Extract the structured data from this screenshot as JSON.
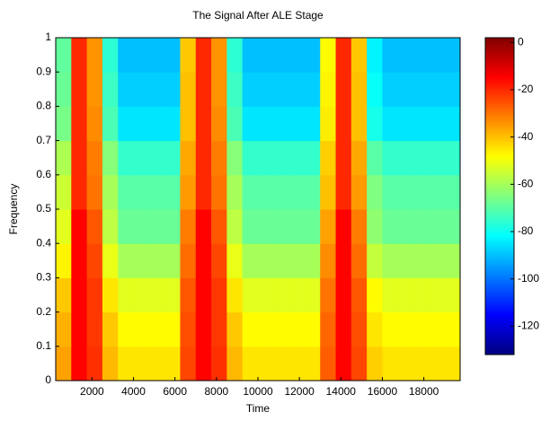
{
  "chart_data": {
    "type": "heatmap",
    "title": "The Signal After ALE Stage",
    "x_label": "Time",
    "y_label": "Frequency",
    "colormap": "jet",
    "x": [
      625,
      1375,
      2125,
      2875,
      3625,
      4375,
      5125,
      5875,
      6625,
      7375,
      8125,
      8875,
      9625,
      10375,
      11125,
      11875,
      12625,
      13375,
      14125,
      14875,
      15625,
      16375,
      17125,
      17875,
      18625,
      19375
    ],
    "y": [
      0.05,
      0.15,
      0.25,
      0.35,
      0.45,
      0.55,
      0.65,
      0.75,
      0.85,
      0.95
    ],
    "z": [
      [
        -36,
        -15,
        -21,
        -39,
        -45,
        -45,
        -45,
        -45,
        -24,
        -15,
        -21,
        -39,
        -45,
        -45,
        -45,
        -45,
        -45,
        -27,
        -15,
        -24,
        -42,
        -45,
        -45,
        -45,
        -45,
        -45
      ],
      [
        -38,
        -15,
        -22,
        -41,
        -48,
        -48,
        -48,
        -48,
        -25,
        -15,
        -22,
        -41,
        -48,
        -48,
        -48,
        -48,
        -48,
        -28,
        -15,
        -25,
        -45,
        -48,
        -48,
        -48,
        -48,
        -48
      ],
      [
        -41,
        -15,
        -22,
        -45,
        -52,
        -52,
        -52,
        -52,
        -26,
        -15,
        -22,
        -45,
        -52,
        -52,
        -52,
        -52,
        -52,
        -30,
        -15,
        -26,
        -48,
        -52,
        -52,
        -52,
        -52,
        -52
      ],
      [
        -47,
        -15,
        -24,
        -51,
        -60,
        -60,
        -60,
        -60,
        -29,
        -15,
        -24,
        -51,
        -60,
        -60,
        -60,
        -60,
        -60,
        -33,
        -15,
        -29,
        -56,
        -60,
        -60,
        -60,
        -60,
        -60
      ],
      [
        -52,
        -15,
        -26,
        -57,
        -68,
        -68,
        -68,
        -68,
        -31,
        -15,
        -26,
        -57,
        -68,
        -68,
        -68,
        -68,
        -68,
        -36,
        -15,
        -31,
        -63,
        -68,
        -68,
        -68,
        -68,
        -68
      ],
      [
        -55,
        -20,
        -30,
        -60,
        -70,
        -70,
        -70,
        -70,
        -35,
        -20,
        -30,
        -60,
        -70,
        -70,
        -70,
        -70,
        -70,
        -40,
        -20,
        -35,
        -65,
        -70,
        -70,
        -70,
        -70,
        -70
      ],
      [
        -59,
        -20,
        -31,
        -64,
        -75,
        -75,
        -75,
        -75,
        -37,
        -20,
        -31,
        -64,
        -75,
        -75,
        -75,
        -75,
        -75,
        -42,
        -20,
        -37,
        -70,
        -75,
        -75,
        -75,
        -75,
        -75
      ],
      [
        -66,
        -20,
        -33,
        -72,
        -85,
        -85,
        -85,
        -85,
        -40,
        -20,
        -33,
        -72,
        -85,
        -85,
        -85,
        -85,
        -85,
        -46,
        -20,
        -40,
        -79,
        -85,
        -85,
        -85,
        -85,
        -85
      ],
      [
        -68,
        -20,
        -34,
        -74,
        -88,
        -88,
        -88,
        -88,
        -40,
        -20,
        -34,
        -74,
        -88,
        -88,
        -88,
        -88,
        -88,
        -47,
        -20,
        -40,
        -81,
        -88,
        -88,
        -88,
        -88,
        -88
      ],
      [
        -69,
        -20,
        -34,
        -76,
        -90,
        -90,
        -90,
        -90,
        -41,
        -20,
        -34,
        -76,
        -90,
        -90,
        -90,
        -90,
        -90,
        -48,
        -20,
        -41,
        -83,
        -90,
        -90,
        -90,
        -90,
        -90
      ]
    ],
    "xlim": [
      250,
      19750
    ],
    "ylim": [
      0,
      1
    ],
    "xticks": [
      2000,
      4000,
      6000,
      8000,
      10000,
      12000,
      14000,
      16000,
      18000
    ],
    "yticks": [
      0,
      0.1,
      0.2,
      0.3,
      0.4,
      0.5,
      0.6,
      0.7,
      0.8,
      0.9,
      1
    ],
    "clim": [
      -132,
      2
    ],
    "cticks": [
      0,
      -20,
      -40,
      -60,
      -80,
      -100,
      -120
    ]
  }
}
